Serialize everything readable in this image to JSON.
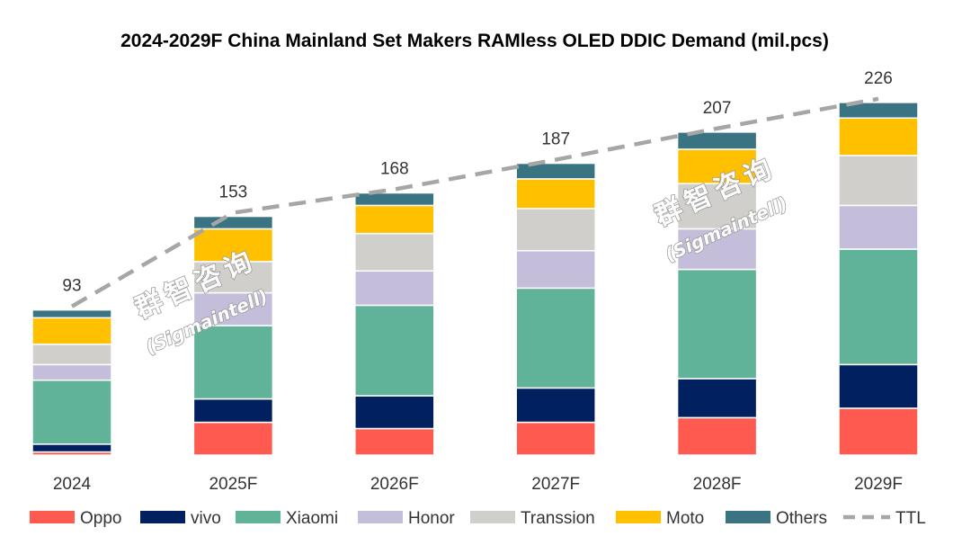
{
  "chart_data": {
    "type": "bar",
    "stacked": true,
    "title": "2024-2029F China Mainland Set Makers RAMless OLED DDIC Demand (mil.pcs)",
    "categories": [
      "2024",
      "2025F",
      "2026F",
      "2027F",
      "2028F",
      "2029F"
    ],
    "series": [
      {
        "name": "Oppo",
        "color": "#FF5A4F",
        "values": [
          2,
          21,
          17,
          21,
          24,
          30
        ]
      },
      {
        "name": "vivo",
        "color": "#00205F",
        "values": [
          5,
          15,
          21,
          22,
          25,
          28
        ]
      },
      {
        "name": "Xiaomi",
        "color": "#60B398",
        "values": [
          41,
          47,
          58,
          64,
          70,
          74
        ]
      },
      {
        "name": "Honor",
        "color": "#C5BEDB",
        "values": [
          10,
          21,
          22,
          24,
          26,
          28
        ]
      },
      {
        "name": "Transsion",
        "color": "#D0CFCB",
        "values": [
          13,
          20,
          24,
          27,
          29,
          32
        ]
      },
      {
        "name": "Moto",
        "color": "#FFC000",
        "values": [
          17,
          21,
          18,
          19,
          22,
          24
        ]
      },
      {
        "name": "Others",
        "color": "#3A7382",
        "values": [
          5,
          8,
          8,
          10,
          11,
          10
        ]
      }
    ],
    "line": {
      "name": "TTL",
      "color": "#A6A6A6",
      "values": [
        93,
        153,
        168,
        187,
        207,
        226
      ],
      "style": "dashed"
    },
    "ylim": [
      0,
      240
    ],
    "grid": false,
    "legend": "bottom"
  },
  "watermark": {
    "cn": "群智咨询",
    "en": "(Sigmaintell)"
  }
}
